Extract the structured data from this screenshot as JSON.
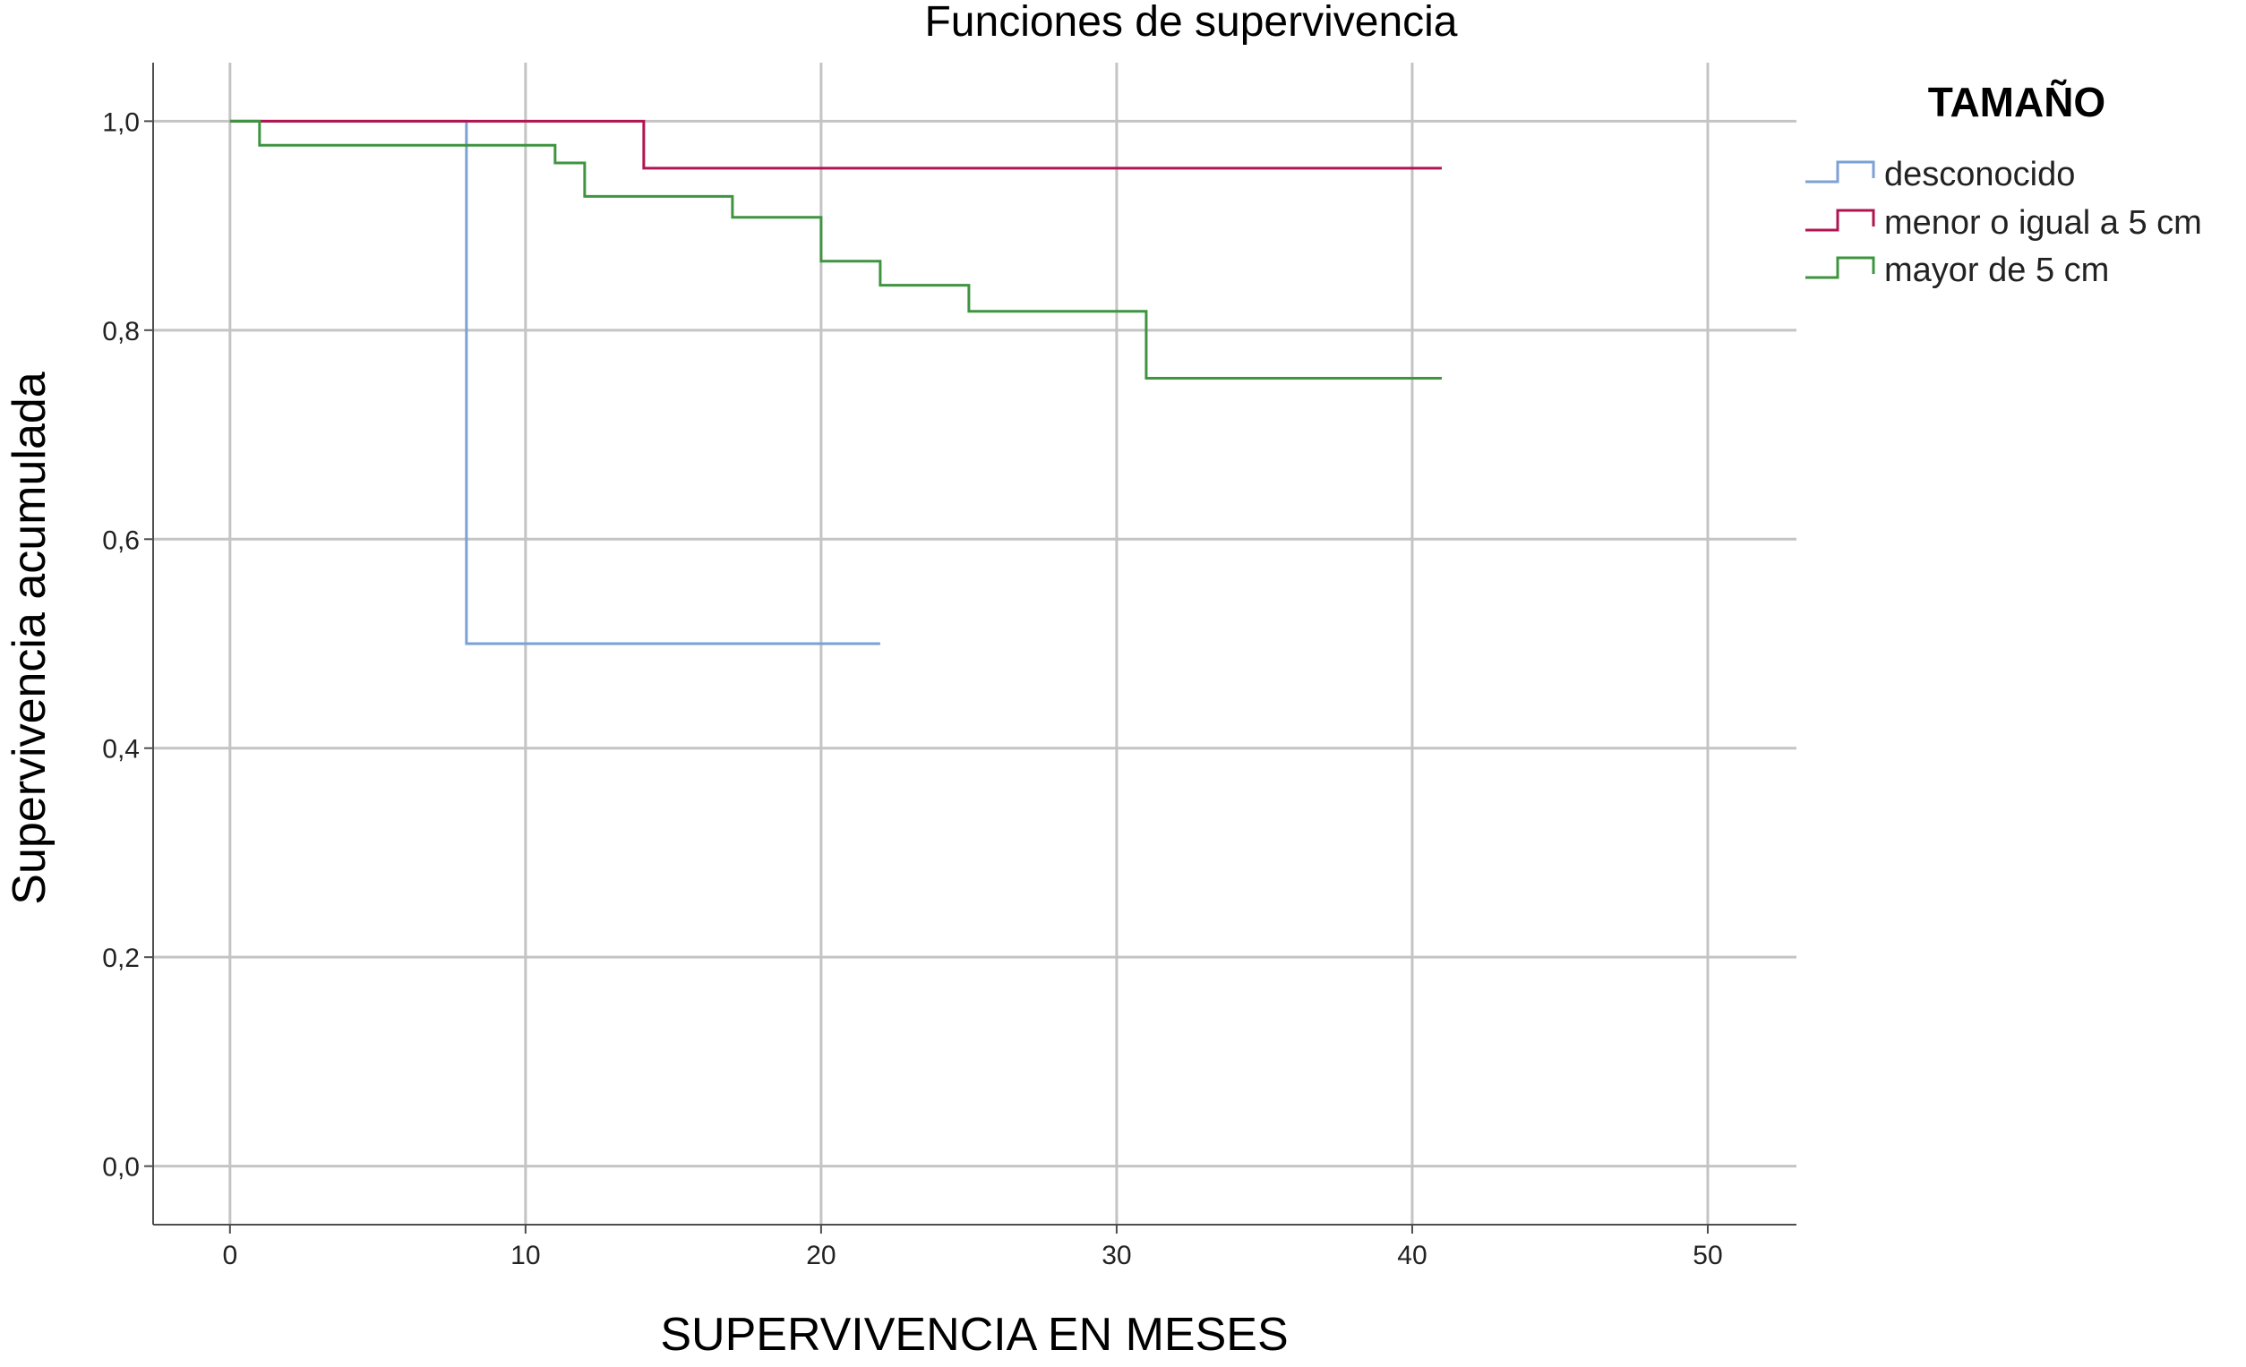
{
  "chart_data": {
    "type": "line",
    "title": "Funciones de supervivencia",
    "xlabel": "SUPERVIVENCIA EN MESES",
    "ylabel": "Supervivencia acumulada",
    "xlim": [
      -2.6,
      53
    ],
    "ylim": [
      -0.056,
      1.056
    ],
    "xticks": [
      0,
      10,
      20,
      30,
      40,
      50
    ],
    "yticks": [
      0.0,
      0.2,
      0.4,
      0.6,
      0.8,
      1.0
    ],
    "x_tick_labels": [
      "0",
      "10",
      "20",
      "30",
      "40",
      "50"
    ],
    "y_tick_labels": [
      "0,0",
      "0,2",
      "0,4",
      "0,6",
      "0,8",
      "1,0"
    ],
    "grid": true,
    "legend_position": "right",
    "legend_title": "TAMAÑO",
    "series": [
      {
        "name": "desconocido",
        "color": "#7aa2d6",
        "step": "post",
        "points": [
          [
            0,
            1.0
          ],
          [
            8,
            0.5
          ],
          [
            22,
            0.5
          ]
        ]
      },
      {
        "name": "menor o igual a 5 cm",
        "color": "#b0154f",
        "step": "post",
        "points": [
          [
            0,
            1.0
          ],
          [
            14,
            0.955
          ],
          [
            41,
            0.955
          ]
        ]
      },
      {
        "name": "mayor de 5 cm",
        "color": "#3f9440",
        "step": "post",
        "points": [
          [
            0,
            1.0
          ],
          [
            1,
            0.977
          ],
          [
            11,
            0.96
          ],
          [
            12,
            0.928
          ],
          [
            17,
            0.908
          ],
          [
            20,
            0.866
          ],
          [
            22,
            0.843
          ],
          [
            25,
            0.818
          ],
          [
            31,
            0.754
          ],
          [
            41,
            0.754
          ]
        ]
      }
    ]
  }
}
